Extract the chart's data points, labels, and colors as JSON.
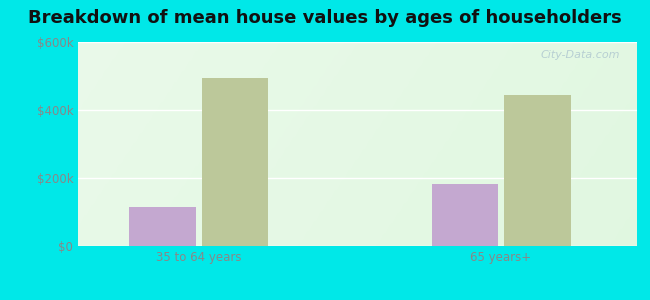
{
  "title": "Breakdown of mean house values by ages of householders",
  "categories": [
    "35 to 64 years",
    "65 years+"
  ],
  "series": {
    "Rudyard": [
      115000,
      182000
    ],
    "Montana": [
      495000,
      445000
    ]
  },
  "bar_colors": {
    "Rudyard": "#c4a8d0",
    "Montana": "#bcc89a"
  },
  "ylim": [
    0,
    600000
  ],
  "yticks": [
    0,
    200000,
    400000,
    600000
  ],
  "ytick_labels": [
    "$0",
    "$200k",
    "$400k",
    "$600k"
  ],
  "background_color": "#00e8e8",
  "title_fontsize": 13,
  "tick_fontsize": 8.5,
  "legend_fontsize": 9.5,
  "watermark": "City-Data.com",
  "bar_width": 0.22
}
